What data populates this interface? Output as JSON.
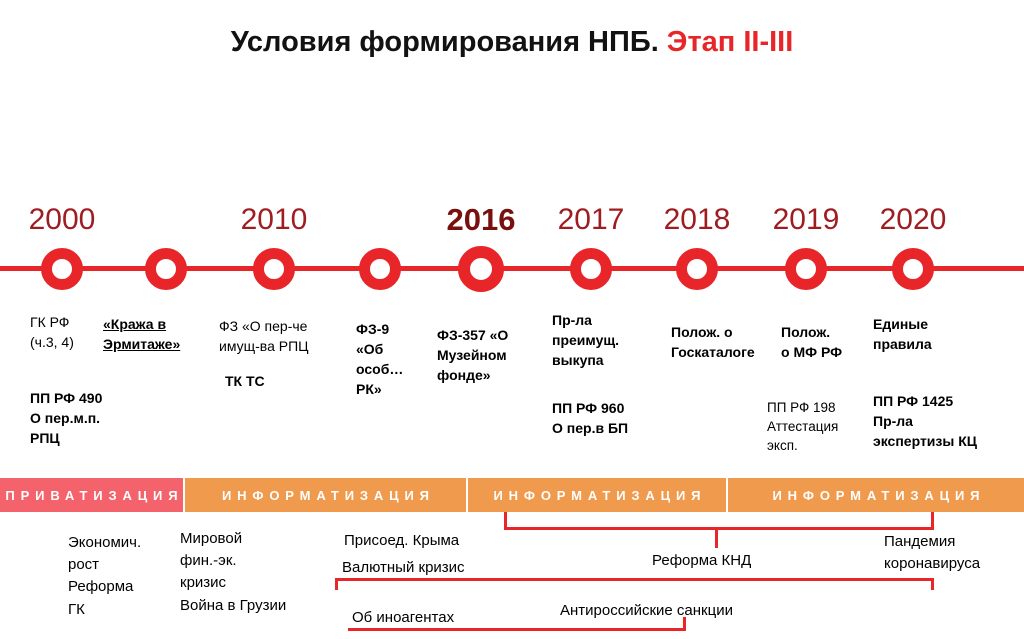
{
  "title": {
    "main": "Условия формирования НПБ.",
    "highlight": " Этап II-III"
  },
  "timeline": {
    "axis_color": "#e8262a",
    "events": [
      {
        "year": "2000",
        "notes": [
          {
            "text": "ГК РФ\n(ч.3, 4)"
          },
          {
            "text": "ПП РФ 490\nО пер.м.п.\nРПЦ"
          }
        ]
      },
      {
        "year": "",
        "notes": [
          {
            "text": "«Кража в\nЭрмитаже»"
          }
        ]
      },
      {
        "year": "2010",
        "notes": [
          {
            "text": "ФЗ «О пер-че\nимущ-ва РПЦ"
          },
          {
            "text": "ТК ТС"
          }
        ]
      },
      {
        "year": "",
        "notes": [
          {
            "text": "ФЗ-9\n«Об\nособ…\nРК»"
          }
        ]
      },
      {
        "year": "2016",
        "notes": [
          {
            "text": "ФЗ-357 «О\nМузейном\nфонде»"
          }
        ]
      },
      {
        "year": "2017",
        "notes": [
          {
            "text": "Пр-ла\nпреимущ.\nвыкупа"
          },
          {
            "text": "ПП РФ 960\nО пер.в БП"
          }
        ]
      },
      {
        "year": "2018",
        "notes": [
          {
            "text": "Полож. о\nГоскаталоге"
          }
        ]
      },
      {
        "year": "2019",
        "notes": [
          {
            "text": "Полож.\nо МФ РФ"
          },
          {
            "text": "ПП РФ 198\nАттестация\nэксп."
          }
        ]
      },
      {
        "year": "2020",
        "notes": [
          {
            "text": "Единые\nправила"
          },
          {
            "text": "ПП РФ 1425\nПр-ла\nэкспертизы КЦ"
          }
        ]
      }
    ]
  },
  "band": {
    "segments": [
      {
        "label": "ПРИВАТИЗАЦИЯ",
        "color": "#f4636c"
      },
      {
        "label": "ИНФОРМАТИЗАЦИЯ",
        "color": "#f09a4e"
      },
      {
        "label": "ИНФОРМАТИЗАЦИЯ",
        "color": "#f09a4e"
      },
      {
        "label": "ИНФОРМАТИЗАЦИЯ",
        "color": "#f09a4e"
      }
    ]
  },
  "context": {
    "economy": "Экономич.\nрост\nРеформа\nГК",
    "crisis": "Мировой\nфин.-эк.\nкризис\nВойна в Грузии",
    "crimea": "Присоед. Крыма",
    "currency_crisis": "Валютный кризис",
    "foreign_agents": "Об иноагентах",
    "knd_reform": "Реформа КНД",
    "sanctions": "Антироссийские санкции",
    "pandemic": "Пандемия\nкоронавируса"
  },
  "colors": {
    "accent_red": "#e8262a",
    "year_label": "#9f1c21",
    "band_privatization": "#f4636c",
    "band_informatization": "#f09a4e"
  }
}
